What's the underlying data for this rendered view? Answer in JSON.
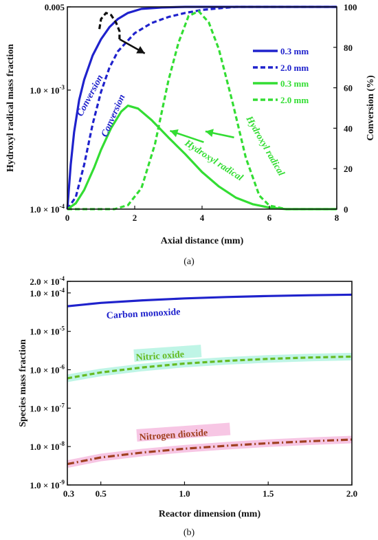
{
  "chart_data": [
    {
      "type": "line",
      "panel_label": "(a)",
      "xlabel": "Axial distance (mm)",
      "ylabel_left": "Hydroxyl radical mass fraction",
      "ylabel_right": "Conversion (%)",
      "xlim": [
        0,
        8
      ],
      "ylim_left": [
        0.0001,
        0.005
      ],
      "ylim_right": [
        0,
        100
      ],
      "left_scale": "log",
      "x_ticks": [
        "0",
        "2",
        "4",
        "6",
        "8"
      ],
      "y_left_ticks": [
        "1.0 × 10",
        "1.0 × 10",
        "0.005"
      ],
      "y_left_tick_exponents": [
        "-4",
        "-3",
        ""
      ],
      "y_right_ticks": [
        "0",
        "20",
        "40",
        "60",
        "80",
        "100"
      ],
      "colors": {
        "blue": "#1f22cc",
        "green": "#33dd33",
        "black": "#111111"
      },
      "legend": {
        "placement": "top-right",
        "entries": [
          {
            "label": "0.3 mm",
            "color": "#1f22cc",
            "dash": "solid"
          },
          {
            "label": "2.0 mm",
            "color": "#1f22cc",
            "dash": "dashed"
          },
          {
            "label": "0.3 mm",
            "color": "#33dd33",
            "dash": "solid"
          },
          {
            "label": "2.0 mm",
            "color": "#33dd33",
            "dash": "dashed"
          }
        ]
      },
      "annotations": {
        "conversion_1": "Conversion",
        "conversion_2": "Conversion",
        "hydroxyl_1": "Hydroxyl radical",
        "hydroxyl_2": "Hydroxyl radical"
      },
      "series": [
        {
          "axis": "right",
          "color": "#1f22cc",
          "dash": "solid",
          "x": [
            0,
            0.1,
            0.2,
            0.35,
            0.5,
            0.75,
            1.0,
            1.25,
            1.5,
            1.8,
            2.2,
            2.8,
            3.5,
            8
          ],
          "y": [
            0,
            22,
            38,
            54,
            64,
            76,
            84,
            90,
            94,
            97,
            99,
            99.7,
            100,
            100
          ]
        },
        {
          "axis": "right",
          "color": "#1f22cc",
          "dash": "dashed",
          "x": [
            0,
            0.25,
            0.5,
            0.75,
            1.0,
            1.25,
            1.5,
            2.0,
            2.5,
            3.0,
            3.5,
            4.0,
            4.5,
            5.0,
            8
          ],
          "y": [
            0,
            6,
            22,
            42,
            58,
            70,
            78,
            87,
            92,
            95,
            97,
            98.5,
            99.3,
            100,
            100
          ]
        },
        {
          "axis": "left",
          "color": "#33dd33",
          "dash": "solid",
          "x": [
            0,
            0.25,
            0.5,
            0.8,
            1.0,
            1.3,
            1.6,
            1.8,
            2.1,
            2.5,
            3.0,
            3.5,
            4.0,
            4.5,
            5.0,
            5.5,
            6.0,
            6.5,
            8
          ],
          "y": [
            0.0001,
            0.000112,
            0.000145,
            0.000225,
            0.000315,
            0.00048,
            0.00066,
            0.00074,
            0.0007,
            0.00056,
            0.0004,
            0.00029,
            0.000205,
            0.000155,
            0.000125,
            0.00011,
            0.000103,
            0.0001,
            0.0001
          ]
        },
        {
          "axis": "left",
          "color": "#33dd33",
          "dash": "dashed",
          "x": [
            0,
            1.4,
            1.8,
            2.2,
            2.6,
            3.0,
            3.3,
            3.6,
            3.9,
            4.2,
            4.5,
            4.9,
            5.3,
            5.7,
            6.0,
            6.5,
            8
          ],
          "y": [
            0.0001,
            0.0001,
            0.000108,
            0.00015,
            0.00035,
            0.0012,
            0.0025,
            0.0042,
            0.0046,
            0.0037,
            0.0022,
            0.0008,
            0.00027,
            0.00013,
            0.000107,
            0.0001,
            0.0001
          ]
        },
        {
          "axis": "right",
          "color": "#111111",
          "dash": "dashed",
          "x": [
            0.95,
            1.0,
            1.15,
            1.3,
            1.45,
            1.55,
            1.55
          ],
          "y": [
            89,
            94,
            97,
            96,
            92,
            88,
            84
          ]
        }
      ],
      "arrows": [
        {
          "axis": "right",
          "color": "#111111",
          "from": [
            1.55,
            84
          ],
          "to": [
            2.3,
            77
          ]
        },
        {
          "axis": "left",
          "color": "#33dd33",
          "from": [
            4.05,
            0.000365
          ],
          "to": [
            3.05,
            0.000455
          ]
        },
        {
          "axis": "left",
          "color": "#33dd33",
          "from": [
            4.95,
            0.0004
          ],
          "to": [
            4.1,
            0.00045
          ]
        }
      ]
    },
    {
      "type": "line",
      "panel_label": "(b)",
      "xlabel": "Reactor dimension (mm)",
      "ylabel": "Species mass fraction",
      "xlim": [
        0.3,
        2.0
      ],
      "ylim": [
        1e-09,
        0.0002
      ],
      "y_scale": "log",
      "x_ticks": [
        "0.3",
        "0.5",
        "1.0",
        "1.5",
        "2.0"
      ],
      "y_ticks": [
        "2.0 × 10",
        "1.0 × 10",
        "1.0 × 10",
        "1.0 × 10",
        "1.0 × 10",
        "1.0 × 10",
        "1.0 × 10"
      ],
      "y_tick_exponents": [
        "-4",
        "-4",
        "-5",
        "-6",
        "-7",
        "-8",
        "-9"
      ],
      "series": [
        {
          "name": "Carbon monoxide",
          "color": "#1f22cc",
          "dash": "solid",
          "x": [
            0.3,
            0.5,
            0.75,
            1.0,
            1.25,
            1.5,
            1.75,
            2.0
          ],
          "y": [
            4.5e-05,
            5.5e-05,
            6.4e-05,
            7.2e-05,
            7.8e-05,
            8.3e-05,
            8.7e-05,
            9e-05
          ]
        },
        {
          "name": "Nitric oxide",
          "color": "#66bb22",
          "dash": "dashed",
          "halo": "#bff5e6",
          "x": [
            0.3,
            0.5,
            0.75,
            1.0,
            1.25,
            1.5,
            1.75,
            2.0
          ],
          "y": [
            6e-07,
            8.5e-07,
            1.15e-06,
            1.45e-06,
            1.7e-06,
            1.92e-06,
            2.08e-06,
            2.2e-06
          ]
        },
        {
          "name": "Nitrogen dioxide",
          "color": "#a04020",
          "dash": "dashdot",
          "halo": "#f7c6e4",
          "x": [
            0.3,
            0.5,
            0.75,
            1.0,
            1.25,
            1.5,
            1.75,
            2.0
          ],
          "y": [
            3.5e-09,
            5.2e-09,
            7e-09,
            8.8e-09,
            1.05e-08,
            1.22e-08,
            1.38e-08,
            1.52e-08
          ]
        }
      ]
    }
  ]
}
